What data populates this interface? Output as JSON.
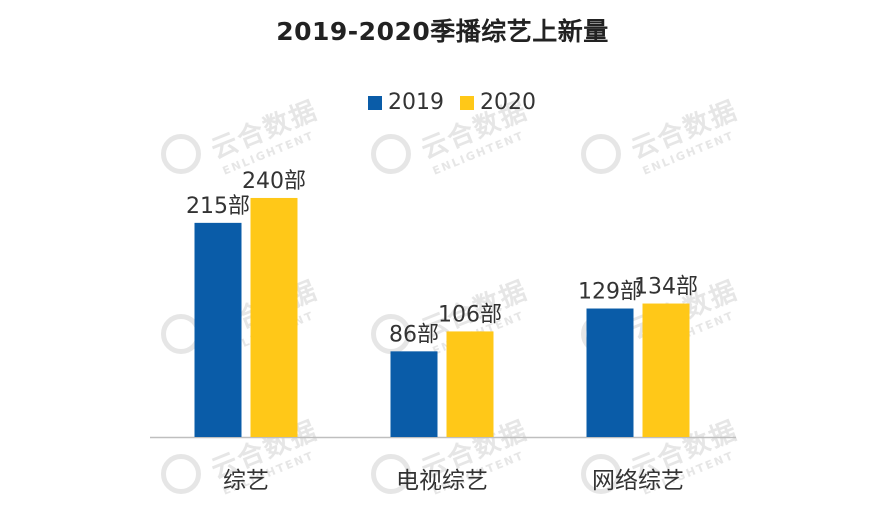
{
  "chart_data": {
    "type": "bar",
    "title": "2019-2020季播综艺上新量",
    "categories": [
      "综艺",
      "电视综艺",
      "网络综艺"
    ],
    "series": [
      {
        "name": "2019",
        "color": "#0A5CA8",
        "values": [
          215,
          86,
          129
        ],
        "labels": [
          "215部",
          "86部",
          "129部"
        ]
      },
      {
        "name": "2020",
        "color": "#FFC818",
        "values": [
          240,
          106,
          134
        ],
        "labels": [
          "240部",
          "106部",
          "134部"
        ]
      }
    ],
    "ylim": [
      0,
      250
    ],
    "grid": false,
    "legend_position": "top-center"
  },
  "watermark": {
    "main": "云合数据",
    "sub": "ENLIGHTENT"
  },
  "colors": {
    "axis": "#BFBFBF",
    "label_text": "#333333",
    "watermark": "#E6E6E6"
  }
}
